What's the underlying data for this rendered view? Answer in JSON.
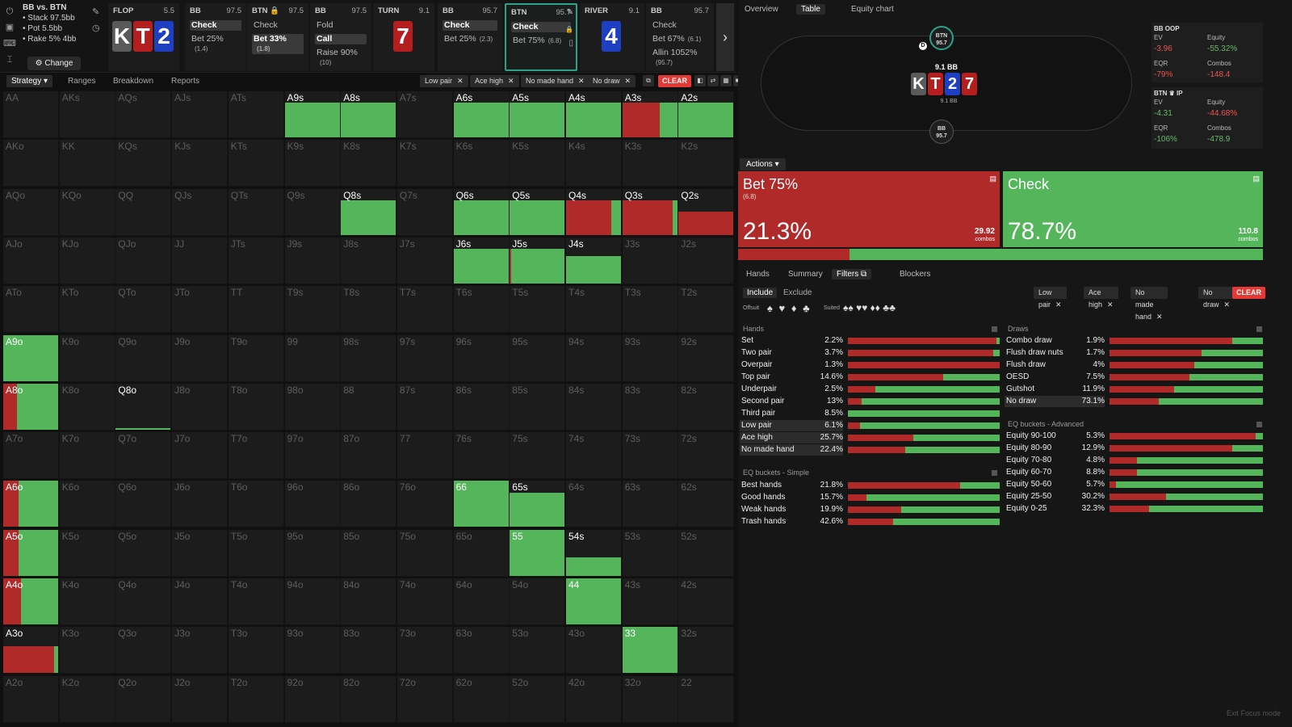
{
  "colors": {
    "accent": "#2aa28a",
    "raise": "#b12a2a",
    "check": "#55b55a",
    "clear": "#e53935",
    "bg": "#101010"
  },
  "sidebar_icons": [
    "power-icon",
    "save-icon",
    "gamepad-icon",
    "text-cursor-icon"
  ],
  "info": {
    "title": "BB vs. BTN",
    "stack": "• Stack 97.5bb",
    "pot": "• Pot 5.5bb",
    "rake": "• Rake 5% 4bb",
    "change": "⚙ Change"
  },
  "steps": [
    {
      "street": "FLOP",
      "val": "5.5",
      "cards": [
        {
          "r": "K",
          "c": "grey"
        },
        {
          "r": "T",
          "c": "red"
        },
        {
          "r": "2",
          "c": "blue"
        }
      ]
    },
    {
      "pos": "BB",
      "val": "97.5",
      "actions": [
        {
          "t": "Check",
          "on": true,
          "s": ""
        },
        {
          "t": "Bet 25%",
          "on": false,
          "s": "(1.4)"
        }
      ]
    },
    {
      "pos": "BTN 🔒",
      "val": "97.5",
      "actions": [
        {
          "t": "Check",
          "on": false,
          "s": ""
        },
        {
          "t": "Bet 33%",
          "on": true,
          "s": "(1.8)"
        }
      ]
    },
    {
      "pos": "BB",
      "val": "97.5",
      "actions": [
        {
          "t": "Fold",
          "on": false,
          "s": ""
        },
        {
          "t": "Call",
          "on": true,
          "s": ""
        },
        {
          "t": "Raise 90%",
          "on": false,
          "s": "(10)"
        }
      ]
    },
    {
      "street": "TURN",
      "val": "9.1",
      "cards": [
        {
          "r": "7",
          "c": "red"
        }
      ]
    },
    {
      "pos": "BB",
      "val": "95.7",
      "actions": [
        {
          "t": "Check",
          "on": true,
          "s": ""
        },
        {
          "t": "Bet 25%",
          "on": false,
          "s": "(2.3)"
        }
      ]
    },
    {
      "pos": "BTN",
      "val": "95.7",
      "actions": [
        {
          "t": "Check",
          "on": true,
          "s": ""
        },
        {
          "t": "Bet 75%",
          "on": false,
          "s": "(6.8)"
        }
      ],
      "sel": true
    },
    {
      "street": "RIVER",
      "val": "9.1",
      "cards": [
        {
          "r": "4",
          "c": "blue"
        }
      ]
    },
    {
      "pos": "BB",
      "val": "95.7",
      "actions": [
        {
          "t": "Check",
          "on": false,
          "s": ""
        },
        {
          "t": "Bet 67%",
          "on": false,
          "s": "(6.1)"
        },
        {
          "t": "Allin 1052%",
          "on": false,
          "s": "(95.7)"
        }
      ]
    }
  ],
  "step_extra": "BTN Ch",
  "tabs": {
    "strategy": "Strategy ▾",
    "ranges": "Ranges",
    "breakdown": "Breakdown",
    "reports": "Reports"
  },
  "filters": [
    "Low pair",
    "Ace high",
    "No made hand",
    "No draw"
  ],
  "clear": "CLEAR",
  "grid": [
    [
      "AA",
      "AKs",
      "AQs",
      "AJs",
      "ATs",
      "A9s",
      "A8s",
      "A7s",
      "A6s",
      "A5s",
      "A4s",
      "A3s",
      "A2s"
    ],
    [
      "AKo",
      "KK",
      "KQs",
      "KJs",
      "KTs",
      "K9s",
      "K8s",
      "K7s",
      "K6s",
      "K5s",
      "K4s",
      "K3s",
      "K2s"
    ],
    [
      "AQo",
      "KQo",
      "QQ",
      "QJs",
      "QTs",
      "Q9s",
      "Q8s",
      "Q7s",
      "Q6s",
      "Q5s",
      "Q4s",
      "Q3s",
      "Q2s"
    ],
    [
      "AJo",
      "KJo",
      "QJo",
      "JJ",
      "JTs",
      "J9s",
      "J8s",
      "J7s",
      "J6s",
      "J5s",
      "J4s",
      "J3s",
      "J2s"
    ],
    [
      "ATo",
      "KTo",
      "QTo",
      "JTo",
      "TT",
      "T9s",
      "T8s",
      "T7s",
      "T6s",
      "T5s",
      "T4s",
      "T3s",
      "T2s"
    ],
    [
      "A9o",
      "K9o",
      "Q9o",
      "J9o",
      "T9o",
      "99",
      "98s",
      "97s",
      "96s",
      "95s",
      "94s",
      "93s",
      "92s"
    ],
    [
      "A8o",
      "K8o",
      "Q8o",
      "J8o",
      "T8o",
      "98o",
      "88",
      "87s",
      "86s",
      "85s",
      "84s",
      "83s",
      "82s"
    ],
    [
      "A7o",
      "K7o",
      "Q7o",
      "J7o",
      "T7o",
      "97o",
      "87o",
      "77",
      "76s",
      "75s",
      "74s",
      "73s",
      "72s"
    ],
    [
      "A6o",
      "K6o",
      "Q6o",
      "J6o",
      "T6o",
      "96o",
      "86o",
      "76o",
      "66",
      "65s",
      "64s",
      "63s",
      "62s"
    ],
    [
      "A5o",
      "K5o",
      "Q5o",
      "J5o",
      "T5o",
      "95o",
      "85o",
      "75o",
      "65o",
      "55",
      "54s",
      "53s",
      "52s"
    ],
    [
      "A4o",
      "K4o",
      "Q4o",
      "J4o",
      "T4o",
      "94o",
      "84o",
      "74o",
      "64o",
      "54o",
      "44",
      "43s",
      "42s"
    ],
    [
      "A3o",
      "K3o",
      "Q3o",
      "J3o",
      "T3o",
      "93o",
      "83o",
      "73o",
      "63o",
      "53o",
      "43o",
      "33",
      "32s"
    ],
    [
      "A2o",
      "K2o",
      "Q2o",
      "J2o",
      "T2o",
      "92o",
      "82o",
      "72o",
      "62o",
      "52o",
      "42o",
      "32o",
      "22"
    ]
  ],
  "grid_strategy": [
    {
      "hand": "A9s",
      "freq": 0.75,
      "bet": 0
    },
    {
      "hand": "A8s",
      "freq": 0.75,
      "bet": 0
    },
    {
      "hand": "A6s",
      "freq": 0.75,
      "bet": 0
    },
    {
      "hand": "A5s",
      "freq": 0.75,
      "bet": 0
    },
    {
      "hand": "A4s",
      "freq": 0.75,
      "bet": 0
    },
    {
      "hand": "A3s",
      "freq": 0.75,
      "bet": 0.68
    },
    {
      "hand": "A2s",
      "freq": 0.75,
      "bet": 0
    },
    {
      "hand": "Q8s",
      "freq": 0.75,
      "bet": 0
    },
    {
      "hand": "Q6s",
      "freq": 0.75,
      "bet": 0
    },
    {
      "hand": "Q5s",
      "freq": 0.75,
      "bet": 0
    },
    {
      "hand": "Q4s",
      "freq": 0.75,
      "bet": 0.82
    },
    {
      "hand": "Q3s",
      "freq": 0.75,
      "bet": 0.92
    },
    {
      "hand": "Q2s",
      "freq": 0.5,
      "bet": 1
    },
    {
      "hand": "J6s",
      "freq": 0.75,
      "bet": 0
    },
    {
      "hand": "J5s",
      "freq": 0.75,
      "bet": 0.03
    },
    {
      "hand": "J4s",
      "freq": 0.6,
      "bet": 0
    },
    {
      "hand": "A9o",
      "freq": 1,
      "bet": 0
    },
    {
      "hand": "A8o",
      "freq": 1,
      "bet": 0.25
    },
    {
      "hand": "Q8o",
      "freq": 0.03,
      "bet": 0
    },
    {
      "hand": "A6o",
      "freq": 1,
      "bet": 0.28
    },
    {
      "hand": "66",
      "freq": 1,
      "bet": 0
    },
    {
      "hand": "65s",
      "freq": 0.75,
      "bet": 0
    },
    {
      "hand": "A5o",
      "freq": 1,
      "bet": 0.28
    },
    {
      "hand": "55",
      "freq": 1,
      "bet": 0
    },
    {
      "hand": "54s",
      "freq": 0.4,
      "bet": 0
    },
    {
      "hand": "A4o",
      "freq": 1,
      "bet": 0.32
    },
    {
      "hand": "44",
      "freq": 1,
      "bet": 0
    },
    {
      "hand": "A3o",
      "freq": 0.58,
      "bet": 0.92
    },
    {
      "hand": "33",
      "freq": 1,
      "bet": 0
    }
  ],
  "right": {
    "tabs": [
      "Overview",
      "Table",
      "Equity chart"
    ],
    "seat_btn": [
      "BTN",
      "95.7"
    ],
    "seat_bb": [
      "BB",
      "95.7"
    ],
    "pot_label": "9.1 BB",
    "pot_sub": "9.1 BB",
    "board": [
      {
        "r": "K",
        "c": "grey"
      },
      {
        "r": "T",
        "c": "red"
      },
      {
        "r": "2",
        "c": "blue"
      },
      {
        "r": "7",
        "c": "red"
      }
    ],
    "bb_stats": {
      "title": "BB OOP",
      "ev_l": "EV",
      "ev": "-3.96",
      "eq_l": "Equity",
      "eq": "-55.32%",
      "eqr_l": "EQR",
      "eqr": "-79%",
      "combos_l": "Combos",
      "combos": "-148.4"
    },
    "btn_stats": {
      "title": "BTN ♛ IP",
      "ev_l": "EV",
      "ev": "-4.31",
      "eq_l": "Equity",
      "eq": "-44.68%",
      "eqr_l": "EQR",
      "eqr": "-106%",
      "combos_l": "Combos",
      "combos": "-478.9"
    },
    "actions_label": "Actions ▾",
    "bet": {
      "name": "Bet 75%",
      "sub": "(6.8)",
      "pct": "21.3%",
      "combos": "29.92",
      "combos_l": "combos"
    },
    "check": {
      "name": "Check",
      "pct": "78.7%",
      "combos": "110.8",
      "combos_l": "combos"
    },
    "freq_bar": 0.213,
    "subtabs": [
      "Hands",
      "Summary",
      "Filters ⧉",
      "Blockers"
    ],
    "include": "Include",
    "exclude": "Exclude",
    "offsuit": "Offsuit",
    "suited": "Suited",
    "suits": "♠ ♥ ♦ ♣",
    "suited_suits": "♠♠ ♥♥ ♦♦ ♣♣",
    "hands_title": "Hands",
    "hands": [
      {
        "n": "Set",
        "p": "2.2%",
        "b": 0.98,
        "hl": false
      },
      {
        "n": "Two pair",
        "p": "3.7%",
        "b": 0.96,
        "hl": false
      },
      {
        "n": "Overpair",
        "p": "1.3%",
        "b": 1,
        "hl": false
      },
      {
        "n": "Top pair",
        "p": "14.6%",
        "b": 0.63,
        "hl": false
      },
      {
        "n": "Underpair",
        "p": "2.5%",
        "b": 0.18,
        "hl": false
      },
      {
        "n": "Second pair",
        "p": "13%",
        "b": 0.09,
        "hl": false
      },
      {
        "n": "Third pair",
        "p": "8.5%",
        "b": 0,
        "hl": false
      },
      {
        "n": "Low pair",
        "p": "6.1%",
        "b": 0.08,
        "hl": true
      },
      {
        "n": "Ace high",
        "p": "25.7%",
        "b": 0.43,
        "hl": true
      },
      {
        "n": "No made hand",
        "p": "22.4%",
        "b": 0.38,
        "hl": true
      }
    ],
    "eqs_title": "EQ buckets - Simple",
    "eqs": [
      {
        "n": "Best hands",
        "p": "21.8%",
        "b": 0.74
      },
      {
        "n": "Good hands",
        "p": "15.7%",
        "b": 0.12
      },
      {
        "n": "Weak hands",
        "p": "19.9%",
        "b": 0.35
      },
      {
        "n": "Trash hands",
        "p": "42.6%",
        "b": 0.3
      }
    ],
    "draws_title": "Draws",
    "draws": [
      {
        "n": "Combo draw",
        "p": "1.9%",
        "b": 0.8,
        "hl": false
      },
      {
        "n": "Flush draw nuts",
        "p": "1.7%",
        "b": 0.6,
        "hl": false
      },
      {
        "n": "Flush draw",
        "p": "4%",
        "b": 0.55,
        "hl": false
      },
      {
        "n": "OESD",
        "p": "7.5%",
        "b": 0.52,
        "hl": false
      },
      {
        "n": "Gutshot",
        "p": "11.9%",
        "b": 0.42,
        "hl": false
      },
      {
        "n": "No draw",
        "p": "73.1%",
        "b": 0.32,
        "hl": true
      }
    ],
    "eqa_title": "EQ buckets - Advanced",
    "eqa": [
      {
        "n": "Equity 90-100",
        "p": "5.3%",
        "b": 0.95
      },
      {
        "n": "Equity 80-90",
        "p": "12.9%",
        "b": 0.8
      },
      {
        "n": "Equity 70-80",
        "p": "4.8%",
        "b": 0.18
      },
      {
        "n": "Equity 60-70",
        "p": "8.8%",
        "b": 0.18
      },
      {
        "n": "Equity 50-60",
        "p": "5.7%",
        "b": 0.04
      },
      {
        "n": "Equity 25-50",
        "p": "30.2%",
        "b": 0.37
      },
      {
        "n": "Equity 0-25",
        "p": "32.3%",
        "b": 0.26
      }
    ],
    "exit": "Exit Focus mode"
  }
}
